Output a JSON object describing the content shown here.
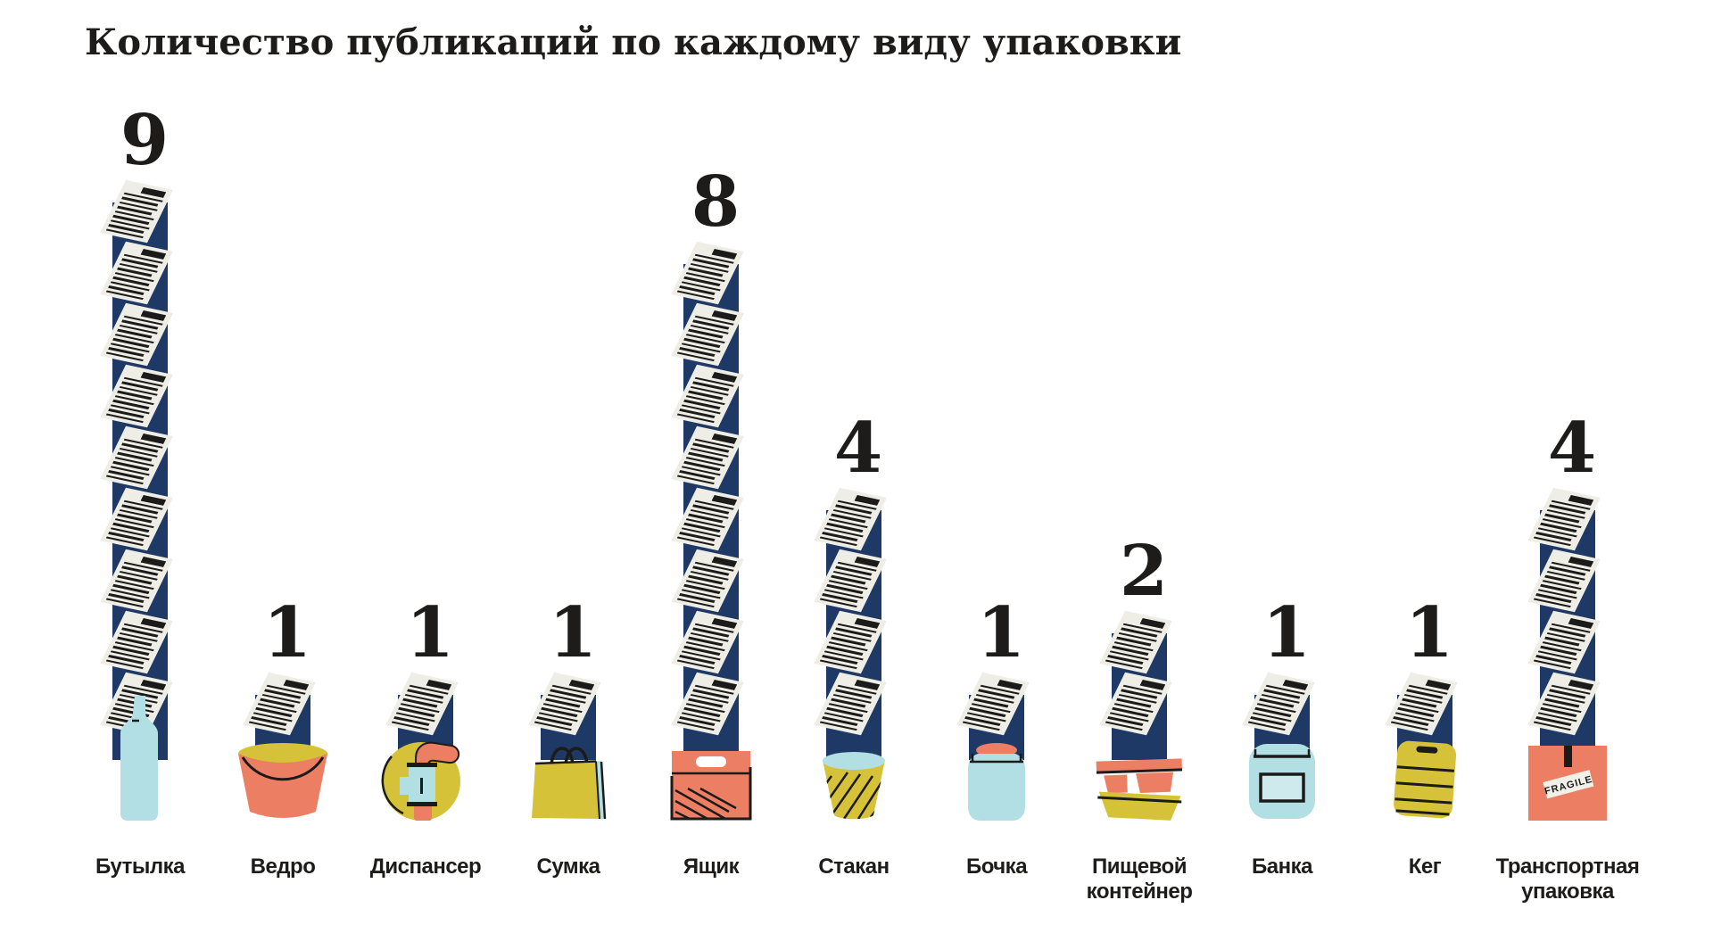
{
  "title": "Количество публикаций по каждому виду упаковки",
  "chart_data": {
    "type": "bar",
    "subtype": "pictogram-bar",
    "title": "Количество публикаций по каждому виду упаковки",
    "categories": [
      "Бутылка",
      "Ведро",
      "Диспансер",
      "Сумка",
      "Ящик",
      "Стакан",
      "Бочка",
      "Пищевой контейнер",
      "Банка",
      "Кег",
      "Транспортная упаковка"
    ],
    "values": [
      9,
      1,
      1,
      1,
      8,
      4,
      1,
      2,
      1,
      1,
      4
    ],
    "xlabel": "",
    "ylabel": "",
    "ylim": [
      0,
      9
    ],
    "grid": false,
    "legend": "none",
    "data_labels": "above each bar",
    "pictogram_unit": "one document sheet = 1",
    "bar_style": "navy column with stacked document sheets and packaging illustration at base"
  },
  "colors": {
    "background": "#ffffff",
    "navy": "#1f3966",
    "paper": "#efeee6",
    "ink": "#1b1b19",
    "coral": "#ec7f63",
    "yellow": "#d6c238",
    "lightblue": "#b2dfe3",
    "sticker": "#f2f1e9"
  },
  "bars": [
    {
      "key": "bottle",
      "label": "Бутылка",
      "value": 9,
      "icon": "bottle-icon"
    },
    {
      "key": "bucket",
      "label": "Ведро",
      "value": 1,
      "icon": "bucket-icon"
    },
    {
      "key": "dispenser",
      "label": "Диспансер",
      "value": 1,
      "icon": "dispenser-icon"
    },
    {
      "key": "bag",
      "label": "Сумка",
      "value": 1,
      "icon": "bag-icon"
    },
    {
      "key": "crate",
      "label": "Ящик",
      "value": 8,
      "icon": "crate-icon"
    },
    {
      "key": "cup",
      "label": "Стакан",
      "value": 4,
      "icon": "cup-icon"
    },
    {
      "key": "barrel",
      "label": "Бочка",
      "value": 1,
      "icon": "barrel-icon"
    },
    {
      "key": "food-container",
      "label": "Пищевой контейнер",
      "value": 2,
      "icon": "food-container-icon"
    },
    {
      "key": "jar",
      "label": "Банка",
      "value": 1,
      "icon": "jar-icon"
    },
    {
      "key": "keg",
      "label": "Кег",
      "value": 1,
      "icon": "keg-icon"
    },
    {
      "key": "shipping-box",
      "label": "Транспортная упаковка",
      "value": 4,
      "icon": "shipping-box-icon",
      "sticker_text": "FRAGILE"
    }
  ]
}
